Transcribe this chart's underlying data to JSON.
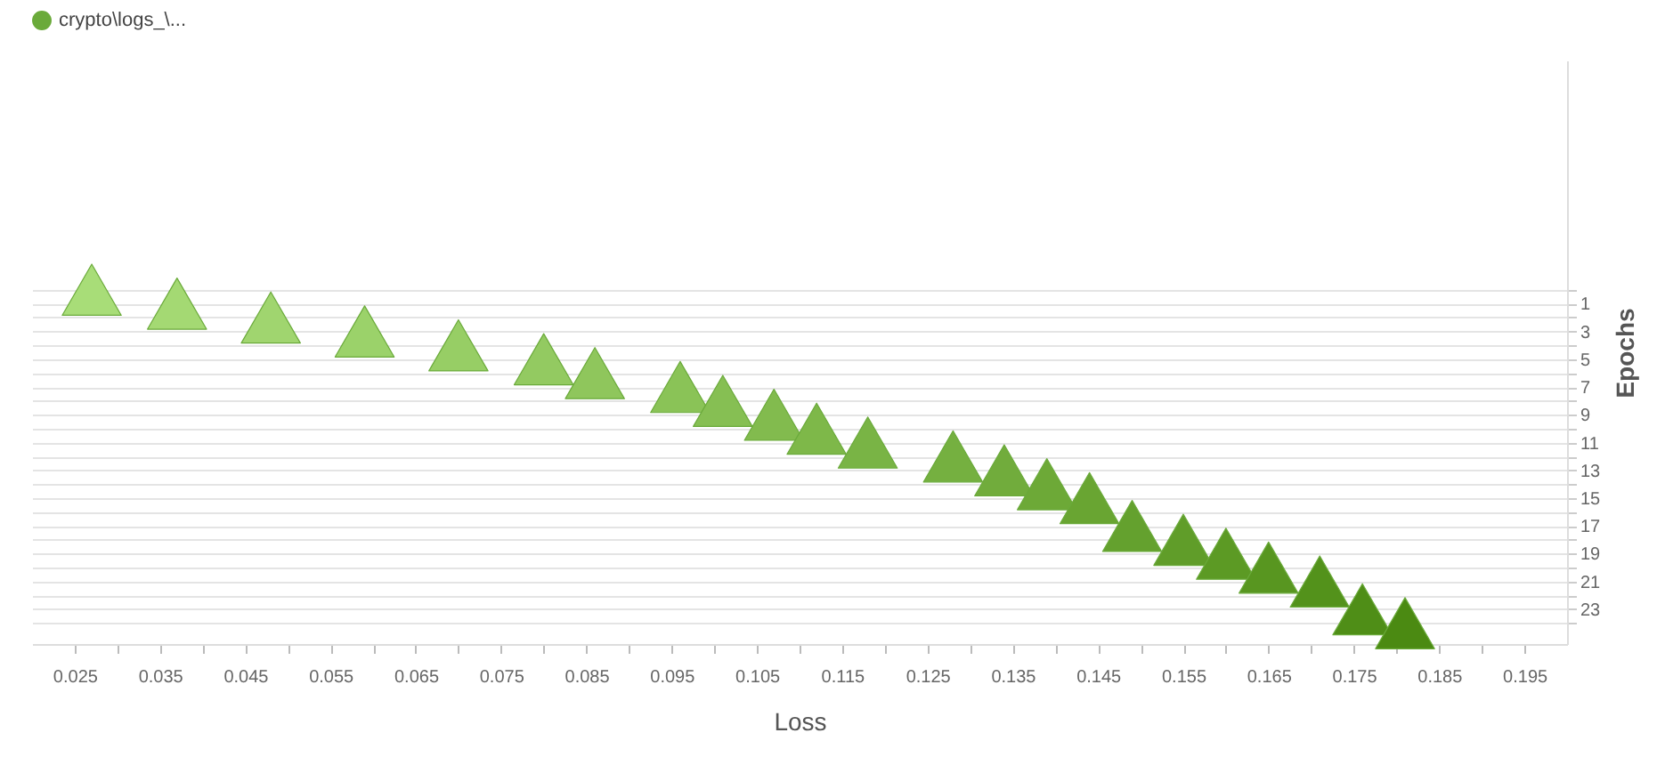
{
  "chart_data": {
    "type": "scatter",
    "xlabel": "Loss",
    "ylabel": "Epochs",
    "legend": "top left",
    "marker": "triangle",
    "grid": "y",
    "xlim": [
      0.02,
      0.2
    ],
    "ylim": [
      25.5,
      -16.5
    ],
    "xticks": [
      0.025,
      {
        "value": 0.03,
        "label": null
      },
      0.035,
      {
        "value": 0.04,
        "label": null
      },
      0.045,
      {
        "value": 0.05,
        "label": null
      },
      0.055,
      {
        "value": 0.06,
        "label": null
      },
      0.065,
      {
        "value": 0.07,
        "label": null
      },
      0.075,
      {
        "value": 0.08,
        "label": null
      },
      0.085,
      {
        "value": 0.09,
        "label": null
      },
      0.095,
      {
        "value": 0.1,
        "label": null
      },
      0.105,
      {
        "value": 0.11,
        "label": null
      },
      0.115,
      {
        "value": 0.12,
        "label": null
      },
      0.125,
      {
        "value": 0.13,
        "label": null
      },
      0.135,
      {
        "value": 0.14,
        "label": null
      },
      0.145,
      {
        "value": 0.15,
        "label": null
      },
      0.155,
      {
        "value": 0.16,
        "label": null
      },
      0.165,
      {
        "value": 0.17,
        "label": null
      },
      0.175,
      {
        "value": 0.18,
        "label": null
      },
      0.185,
      {
        "value": 0.19,
        "label": null
      },
      0.195
    ],
    "yticks": [
      {
        "value": 0,
        "label": null
      },
      1,
      {
        "value": 2,
        "label": null
      },
      3,
      {
        "value": 4,
        "label": null
      },
      5,
      {
        "value": 6,
        "label": null
      },
      7,
      {
        "value": 8,
        "label": null
      },
      9,
      {
        "value": 10,
        "label": null
      },
      11,
      {
        "value": 12,
        "label": null
      },
      13,
      {
        "value": 14,
        "label": null
      },
      15,
      {
        "value": 16,
        "label": null
      },
      17,
      {
        "value": 18,
        "label": null
      },
      19,
      {
        "value": 20,
        "label": null
      },
      21,
      {
        "value": 22,
        "label": null
      },
      23,
      {
        "value": 24,
        "label": null
      }
    ],
    "series": [
      {
        "name": "crypto\\logs_\\...",
        "color": "#6aaa3a",
        "x": [
          0.027,
          0.037,
          0.048,
          0.059,
          0.07,
          0.08,
          0.086,
          0.096,
          0.101,
          0.107,
          0.112,
          0.118,
          0.128,
          0.134,
          0.139,
          0.144,
          0.149,
          0.155,
          0.16,
          0.165,
          0.171,
          0.176,
          0.181
        ],
        "values": [
          0,
          1,
          2,
          3,
          4,
          5,
          6,
          7,
          8,
          9,
          10,
          11,
          12,
          13,
          14,
          15,
          17,
          18,
          19,
          20,
          21,
          23,
          24
        ],
        "colors": [
          "#a8dd78",
          "#a4d973",
          "#a0d56f",
          "#9bd26a",
          "#97ce65",
          "#93ca61",
          "#8fc65c",
          "#8ac357",
          "#86bf53",
          "#82bb4e",
          "#7eb849",
          "#79b445",
          "#75b040",
          "#71ac3c",
          "#6da937",
          "#69a532",
          "#64a12e",
          "#609d29",
          "#5c9a24",
          "#589620",
          "#53921b",
          "#4f8e17",
          "#4b8a12"
        ]
      }
    ]
  }
}
